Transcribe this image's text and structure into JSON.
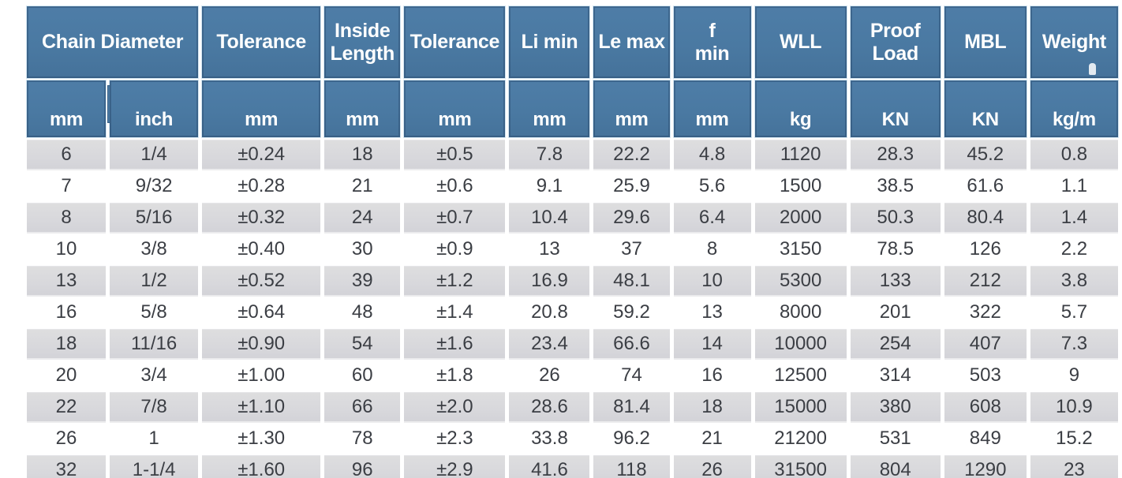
{
  "table": {
    "title": "Chain specification table",
    "colors": {
      "header_bg": "#4a79a2",
      "header_text": "#ffffff",
      "alt_row_bg": "#d8d8dc",
      "row_bg": "#ffffff",
      "data_text": "#3b3e44",
      "gap": "#ffffff",
      "header_halo": "#d4e6f2"
    },
    "header_groups": [
      {
        "label": "Chain Diameter",
        "colspan": 2
      },
      {
        "label": "Tolerance",
        "colspan": 1
      },
      {
        "label": "Inside\nLength",
        "colspan": 1
      },
      {
        "label": "Tolerance",
        "colspan": 1
      },
      {
        "label": "Li min",
        "colspan": 1
      },
      {
        "label": "Le max",
        "colspan": 1
      },
      {
        "label": "f\nmin",
        "colspan": 1
      },
      {
        "label": "WLL",
        "colspan": 1
      },
      {
        "label": "Proof\nLoad",
        "colspan": 1
      },
      {
        "label": "MBL",
        "colspan": 1
      },
      {
        "label": "Weight",
        "colspan": 1
      }
    ],
    "units": [
      "mm",
      "inch",
      "mm",
      "mm",
      "mm",
      "mm",
      "mm",
      "mm",
      "kg",
      "KN",
      "KN",
      "kg/m"
    ],
    "rows": [
      [
        "6",
        "1/4",
        "±0.24",
        "18",
        "±0.5",
        "7.8",
        "22.2",
        "4.8",
        "1120",
        "28.3",
        "45.2",
        "0.8"
      ],
      [
        "7",
        "9/32",
        "±0.28",
        "21",
        "±0.6",
        "9.1",
        "25.9",
        "5.6",
        "1500",
        "38.5",
        "61.6",
        "1.1"
      ],
      [
        "8",
        "5/16",
        "±0.32",
        "24",
        "±0.7",
        "10.4",
        "29.6",
        "6.4",
        "2000",
        "50.3",
        "80.4",
        "1.4"
      ],
      [
        "10",
        "3/8",
        "±0.40",
        "30",
        "±0.9",
        "13",
        "37",
        "8",
        "3150",
        "78.5",
        "126",
        "2.2"
      ],
      [
        "13",
        "1/2",
        "±0.52",
        "39",
        "±1.2",
        "16.9",
        "48.1",
        "10",
        "5300",
        "133",
        "212",
        "3.8"
      ],
      [
        "16",
        "5/8",
        "±0.64",
        "48",
        "±1.4",
        "20.8",
        "59.2",
        "13",
        "8000",
        "201",
        "322",
        "5.7"
      ],
      [
        "18",
        "11/16",
        "±0.90",
        "54",
        "±1.6",
        "23.4",
        "66.6",
        "14",
        "10000",
        "254",
        "407",
        "7.3"
      ],
      [
        "20",
        "3/4",
        "±1.00",
        "60",
        "±1.8",
        "26",
        "74",
        "16",
        "12500",
        "314",
        "503",
        "9"
      ],
      [
        "22",
        "7/8",
        "±1.10",
        "66",
        "±2.0",
        "28.6",
        "81.4",
        "18",
        "15000",
        "380",
        "608",
        "10.9"
      ],
      [
        "26",
        "1",
        "±1.30",
        "78",
        "±2.3",
        "33.8",
        "96.2",
        "21",
        "21200",
        "531",
        "849",
        "15.2"
      ],
      [
        "32",
        "1-1/4",
        "±1.60",
        "96",
        "±2.9",
        "41.6",
        "118",
        "26",
        "31500",
        "804",
        "1290",
        "23"
      ]
    ]
  }
}
